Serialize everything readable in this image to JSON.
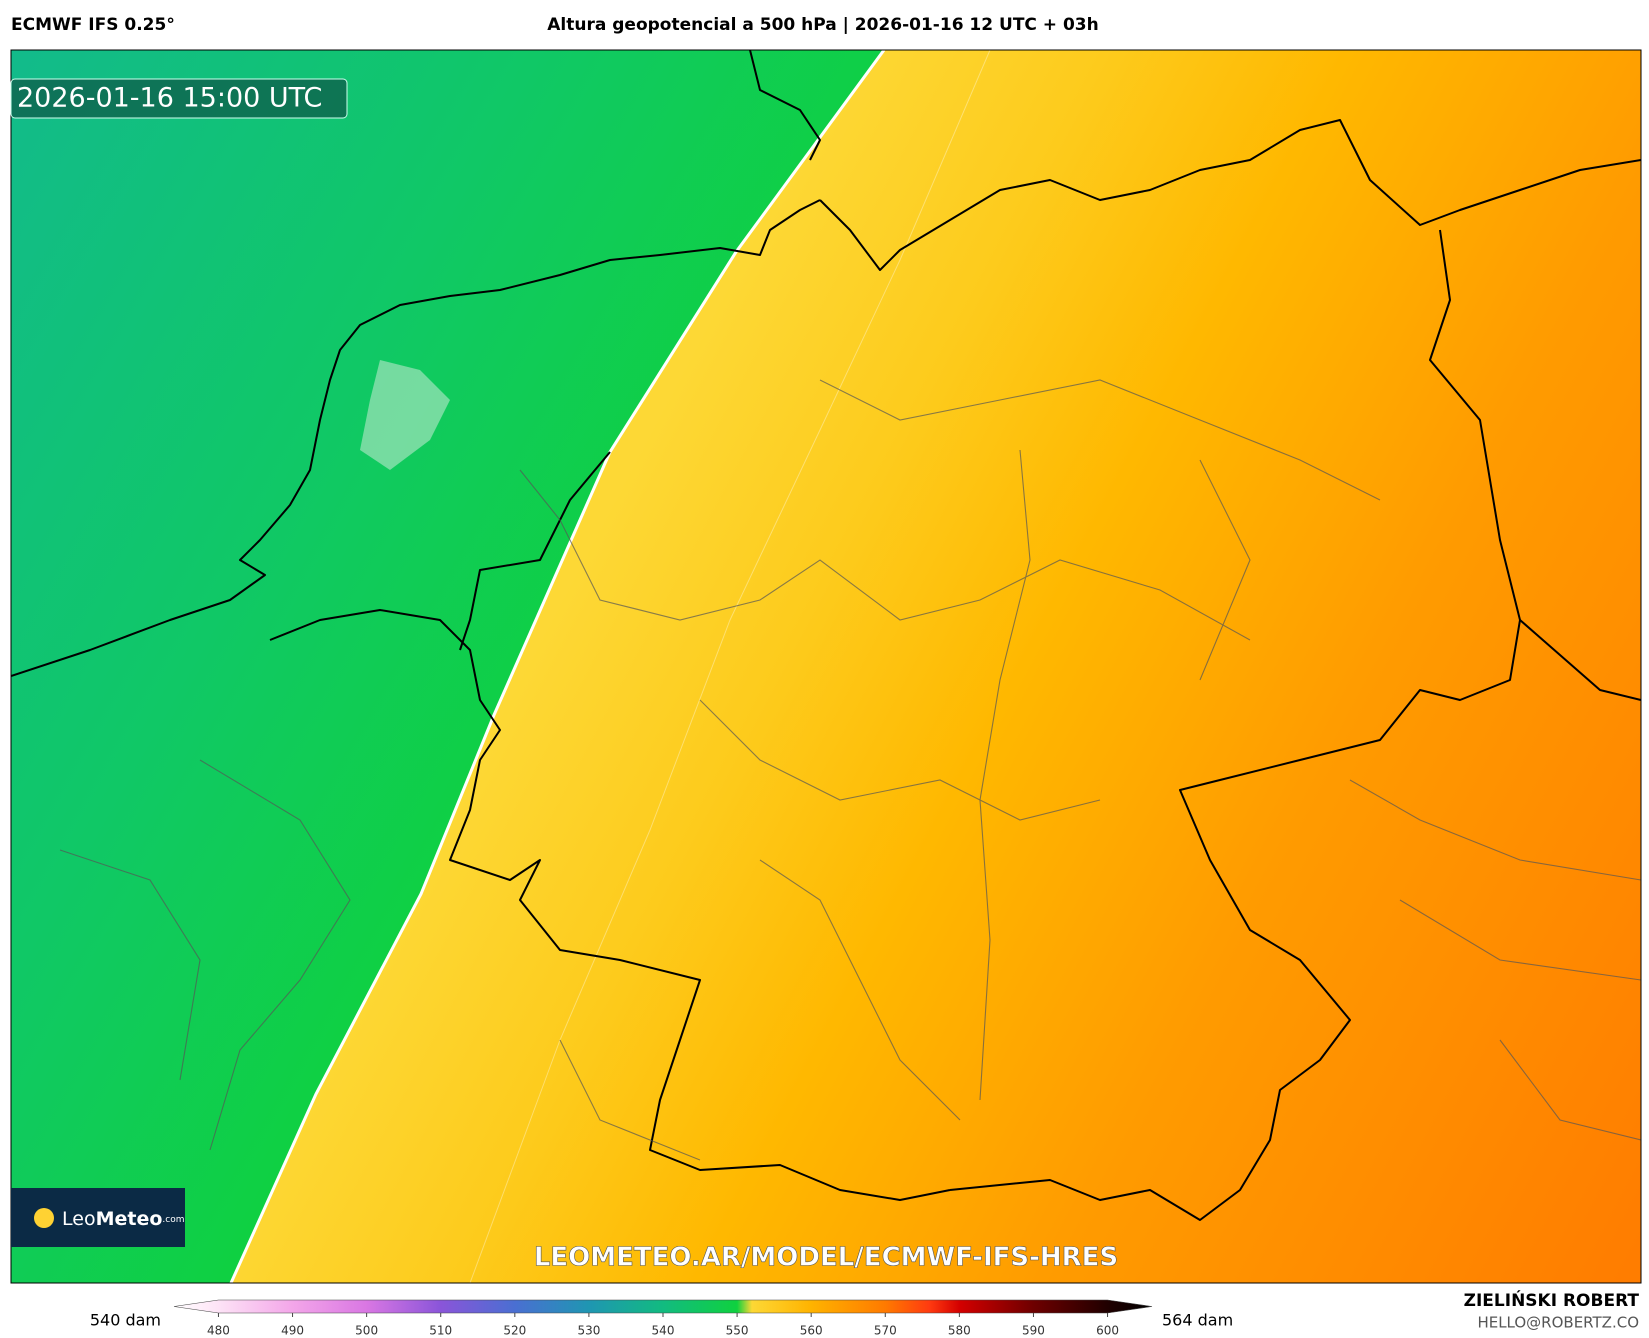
{
  "header": {
    "model": "ECMWF IFS 0.25°",
    "title": "Altura geopotencial a 500 hPa | 2026-01-16 12 UTC + 03h"
  },
  "map": {
    "timestamp": "2026-01-16 15:00 UTC",
    "watermark": "LEOMETEO.AR/MODEL/ECMWF-IFS-HRES",
    "logo": {
      "leo": "Leo",
      "meteo": "Meteo",
      "com": ".com"
    }
  },
  "legend": {
    "min_label": "540 dam",
    "max_label": "564 dam",
    "lim": [
      474,
      606
    ],
    "ticks": [
      480,
      490,
      500,
      510,
      520,
      530,
      540,
      550,
      560,
      570,
      580,
      590,
      600
    ],
    "stops": [
      {
        "value": 474,
        "color": "#ffffff"
      },
      {
        "value": 480,
        "color": "#fde3f6"
      },
      {
        "value": 490,
        "color": "#f3a6e9"
      },
      {
        "value": 500,
        "color": "#d977e3"
      },
      {
        "value": 510,
        "color": "#8a55d9"
      },
      {
        "value": 520,
        "color": "#4a6fd2"
      },
      {
        "value": 530,
        "color": "#1f96b2"
      },
      {
        "value": 540,
        "color": "#12bb80"
      },
      {
        "value": 550,
        "color": "#0fd13f"
      },
      {
        "value": 552,
        "color": "#fdd835"
      },
      {
        "value": 560,
        "color": "#ffb300"
      },
      {
        "value": 570,
        "color": "#ff7a00"
      },
      {
        "value": 576,
        "color": "#ff3a10"
      },
      {
        "value": 580,
        "color": "#d40000"
      },
      {
        "value": 590,
        "color": "#6e0000"
      },
      {
        "value": 600,
        "color": "#200000"
      },
      {
        "value": 606,
        "color": "#000000"
      }
    ]
  },
  "footer": {
    "author": "ZIELIŃSKI ROBERT",
    "email": "HELLO@ROBERTZ.CO"
  }
}
